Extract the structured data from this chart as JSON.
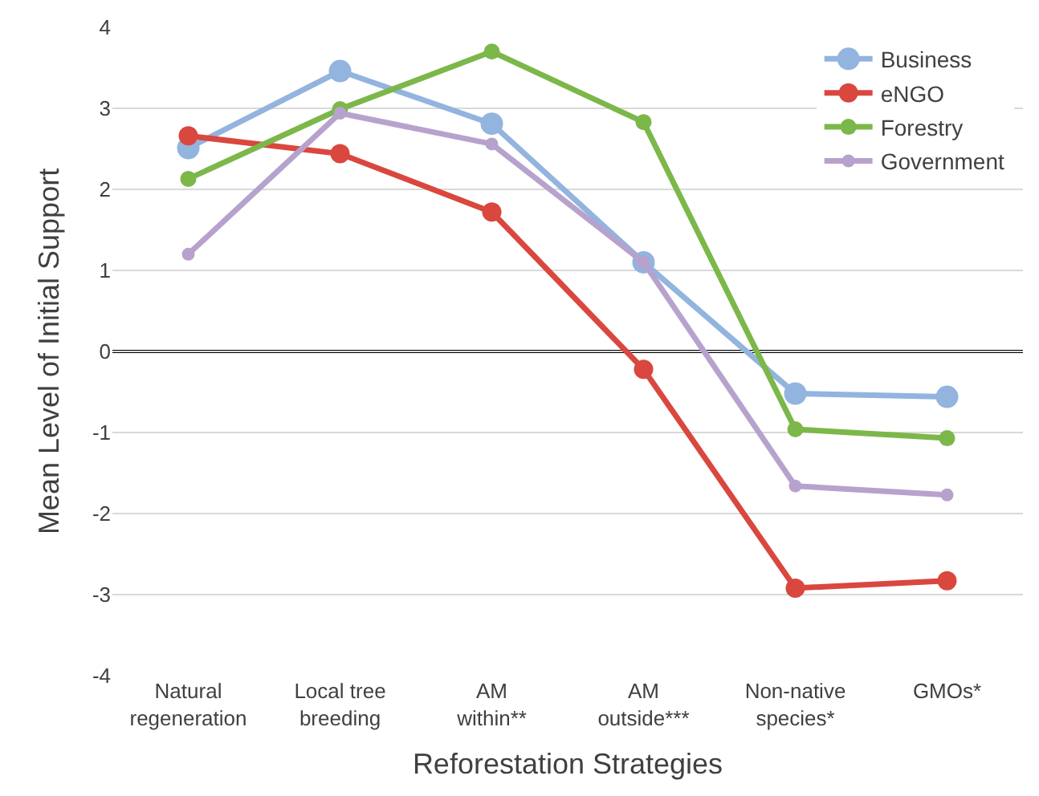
{
  "chart_data": {
    "type": "line",
    "xlabel": "Reforestation Strategies",
    "ylabel": "Mean Level of Initial Support",
    "categories": [
      "Natural\nregeneration",
      "Local tree\nbreeding",
      "AM\nwithin**",
      "AM\noutside***",
      "Non-native\nspecies*",
      "GMOs*"
    ],
    "series": [
      {
        "name": "Business",
        "color": "#92b4de",
        "values": [
          2.51,
          3.46,
          2.81,
          1.1,
          -0.52,
          -0.56
        ]
      },
      {
        "name": "eNGO",
        "color": "#d9473f",
        "values": [
          2.66,
          2.44,
          1.72,
          -0.22,
          -2.92,
          -2.83
        ]
      },
      {
        "name": "Forestry",
        "color": "#7cb74a",
        "values": [
          2.13,
          2.99,
          3.7,
          2.83,
          -0.96,
          -1.07
        ]
      },
      {
        "name": "Government",
        "color": "#b7a2cd",
        "values": [
          1.2,
          2.94,
          2.56,
          1.1,
          -1.66,
          -1.77
        ]
      }
    ],
    "ylim": [
      -4,
      4
    ],
    "yticks": [
      -4,
      -3,
      -2,
      -1,
      0,
      1,
      2,
      3,
      4
    ],
    "grid": "y",
    "legend": "top right",
    "marker": "circle",
    "line_style": "solid",
    "ref_lines": [
      {
        "axis": "y",
        "value": 0,
        "color": "#000000"
      }
    ]
  }
}
